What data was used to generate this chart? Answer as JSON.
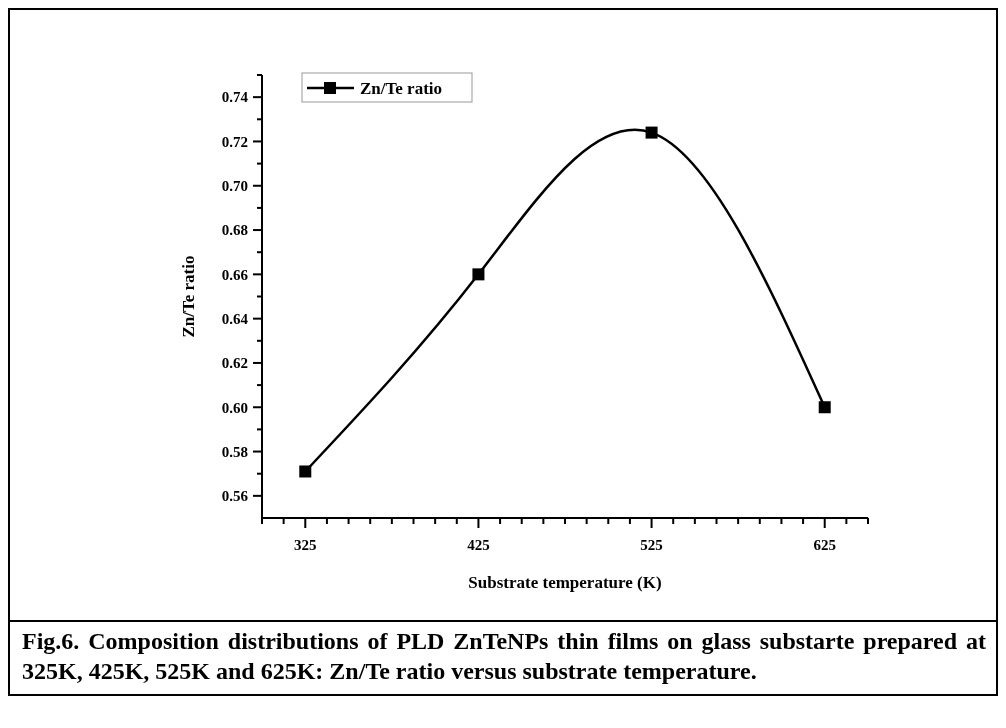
{
  "chart_data": {
    "type": "line",
    "xlabel": "Substrate temperature (K)",
    "ylabel": "Zn/Te ratio",
    "x": [
      325,
      425,
      525,
      625
    ],
    "series": [
      {
        "name": "Zn/Te ratio",
        "color": "#000000",
        "values": [
          0.571,
          0.66,
          0.724,
          0.6
        ]
      }
    ],
    "xlim": [
      300,
      650
    ],
    "xticks": [
      {
        "value": 300,
        "label": null
      },
      {
        "value": 312.5,
        "label": null
      },
      325,
      {
        "value": 337.5,
        "label": null
      },
      {
        "value": 350,
        "label": null
      },
      {
        "value": 362.5,
        "label": null
      },
      {
        "value": 375,
        "label": null
      },
      {
        "value": 387.5,
        "label": null
      },
      {
        "value": 400,
        "label": null
      },
      {
        "value": 412.5,
        "label": null
      },
      425,
      {
        "value": 437.5,
        "label": null
      },
      {
        "value": 450,
        "label": null
      },
      {
        "value": 462.5,
        "label": null
      },
      {
        "value": 475,
        "label": null
      },
      {
        "value": 487.5,
        "label": null
      },
      {
        "value": 500,
        "label": null
      },
      {
        "value": 512.5,
        "label": null
      },
      525,
      {
        "value": 537.5,
        "label": null
      },
      {
        "value": 550,
        "label": null
      },
      {
        "value": 562.5,
        "label": null
      },
      {
        "value": 575,
        "label": null
      },
      {
        "value": 587.5,
        "label": null
      },
      {
        "value": 600,
        "label": null
      },
      {
        "value": 612.5,
        "label": null
      },
      625,
      {
        "value": 637.5,
        "label": null
      },
      {
        "value": 650,
        "label": null
      }
    ],
    "ylim": [
      0.55,
      0.75
    ],
    "yticks": [
      {
        "value": 0.56,
        "label": "0.56"
      },
      {
        "value": 0.57,
        "label": null
      },
      {
        "value": 0.58,
        "label": "0.58"
      },
      {
        "value": 0.59,
        "label": null
      },
      {
        "value": 0.6,
        "label": "0.60"
      },
      {
        "value": 0.61,
        "label": null
      },
      {
        "value": 0.62,
        "label": "0.62"
      },
      {
        "value": 0.63,
        "label": null
      },
      {
        "value": 0.64,
        "label": "0.64"
      },
      {
        "value": 0.65,
        "label": null
      },
      {
        "value": 0.66,
        "label": "0.66"
      },
      {
        "value": 0.67,
        "label": null
      },
      {
        "value": 0.68,
        "label": "0.68"
      },
      {
        "value": 0.69,
        "label": null
      },
      {
        "value": 0.7,
        "label": "0.70"
      },
      {
        "value": 0.71,
        "label": null
      },
      {
        "value": 0.72,
        "label": "0.72"
      },
      {
        "value": 0.73,
        "label": null
      },
      {
        "value": 0.74,
        "label": "0.74"
      },
      {
        "value": 0.75,
        "label": null
      }
    ],
    "grid": false,
    "legend": "top left",
    "marker": "square",
    "line_style": "solid",
    "annotations": [
      "Fig.6. Composition distributions of PLD ZnTeNPs  thin films on glass substarte prepared at 325K, 425K, 525K and 625K: Zn/Te ratio versus substrate temperature."
    ]
  }
}
